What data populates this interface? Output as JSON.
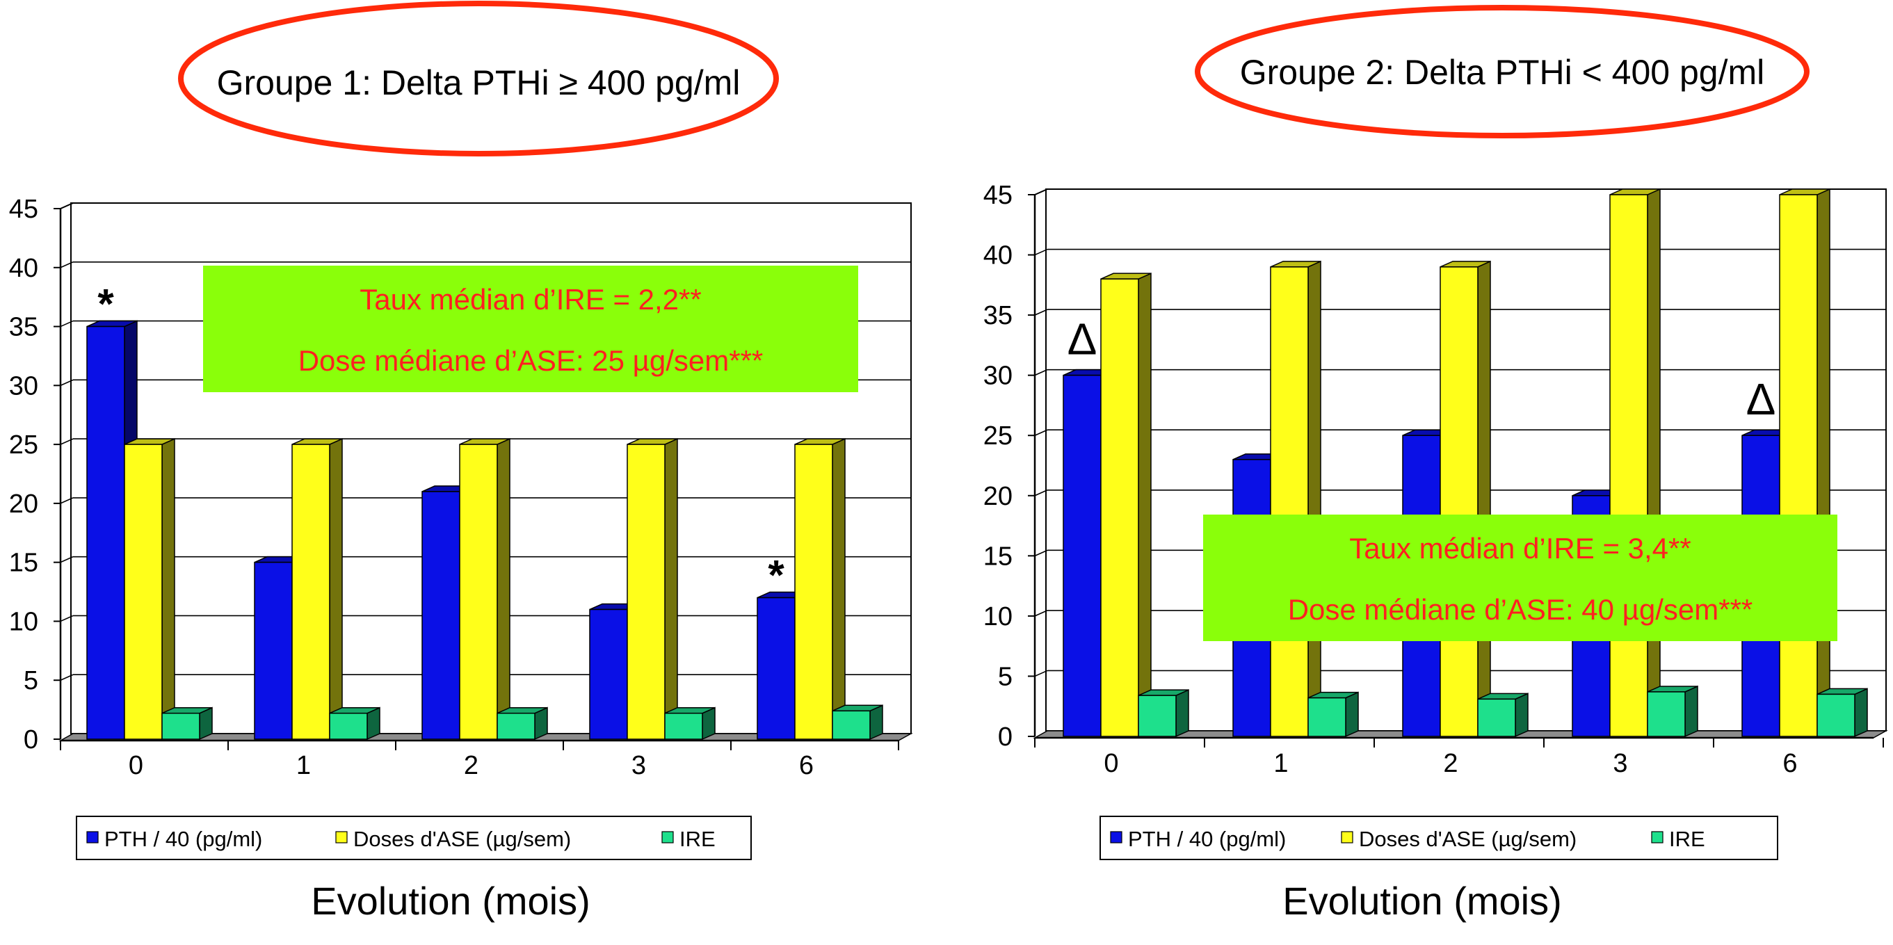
{
  "colors": {
    "pth": "#0a10e6",
    "ase": "#ffff1a",
    "ire": "#1ee08c",
    "box": "#8aff0a",
    "box_text": "#ff2020",
    "ellipse": "#ff2a0a"
  },
  "chart_data": [
    {
      "type": "bar",
      "title": "Groupe 1: Delta PTHi ≥ 400 pg/ml",
      "title_parts": [
        "Groupe 1: Delta PTHi ",
        "≥",
        " 400 pg/ml"
      ],
      "xlabel": "Evolution (mois)",
      "ylabel": "",
      "categories": [
        "0",
        "1",
        "2",
        "3",
        "6"
      ],
      "ylim": [
        0,
        45
      ],
      "yticks": [
        "0",
        "5",
        "10",
        "15",
        "20",
        "25",
        "30",
        "35",
        "40",
        "45"
      ],
      "grid": true,
      "legend_position": "bottom",
      "series": [
        {
          "name": "PTH / 40 (pg/ml)",
          "values": [
            35,
            15,
            21,
            11,
            12
          ]
        },
        {
          "name": "Doses d'ASE (µg/sem)",
          "values": [
            25,
            25,
            25,
            25,
            25
          ]
        },
        {
          "name": "IRE",
          "values": [
            2.2,
            2.2,
            2.2,
            2.2,
            2.4
          ]
        }
      ],
      "annotations": [
        {
          "text": "*",
          "category": "0",
          "series": "PTH / 40 (pg/ml)"
        },
        {
          "text": "*",
          "category": "6",
          "series": "PTH / 40 (pg/ml)"
        }
      ],
      "textbox": [
        "Taux médian d’IRE = 2,2**",
        "Dose médiane d’ASE: 25 µg/sem***"
      ]
    },
    {
      "type": "bar",
      "title": "Groupe 2: Delta PTHi < 400 pg/ml",
      "xlabel": "Evolution (mois)",
      "ylabel": "",
      "categories": [
        "0",
        "1",
        "2",
        "3",
        "6"
      ],
      "ylim": [
        0,
        45
      ],
      "yticks": [
        "0",
        "5",
        "10",
        "15",
        "20",
        "25",
        "30",
        "35",
        "40",
        "45"
      ],
      "grid": true,
      "legend_position": "bottom",
      "series": [
        {
          "name": "PTH / 40 (pg/ml)",
          "values": [
            30,
            23,
            25,
            20,
            25
          ]
        },
        {
          "name": "Doses d'ASE (µg/sem)",
          "values": [
            38,
            39,
            39,
            45,
            45
          ]
        },
        {
          "name": "IRE",
          "values": [
            3.4,
            3.2,
            3.1,
            3.7,
            3.5
          ]
        }
      ],
      "annotations": [
        {
          "text": "Δ",
          "category": "0",
          "series": "PTH / 40 (pg/ml)"
        },
        {
          "text": "Δ",
          "category": "6",
          "series": "PTH / 40 (pg/ml)"
        }
      ],
      "textbox": [
        "Taux médian  d’IRE = 3,4**",
        "Dose médiane d’ASE: 40 µg/sem***"
      ]
    }
  ]
}
